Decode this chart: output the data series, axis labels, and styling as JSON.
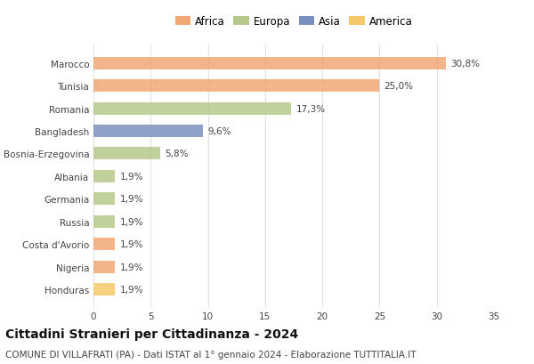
{
  "categories": [
    "Marocco",
    "Tunisia",
    "Romania",
    "Bangladesh",
    "Bosnia-Erzegovina",
    "Albania",
    "Germania",
    "Russia",
    "Costa d'Avorio",
    "Nigeria",
    "Honduras"
  ],
  "values": [
    30.8,
    25.0,
    17.3,
    9.6,
    5.8,
    1.9,
    1.9,
    1.9,
    1.9,
    1.9,
    1.9
  ],
  "labels": [
    "30,8%",
    "25,0%",
    "17,3%",
    "9,6%",
    "5,8%",
    "1,9%",
    "1,9%",
    "1,9%",
    "1,9%",
    "1,9%",
    "1,9%"
  ],
  "colors": [
    "#f0a875",
    "#f0a875",
    "#b5c98a",
    "#7b8fc0",
    "#b5c98a",
    "#b5c98a",
    "#b5c98a",
    "#b5c98a",
    "#f0a875",
    "#f0a875",
    "#f5c96a"
  ],
  "legend_labels": [
    "Africa",
    "Europa",
    "Asia",
    "America"
  ],
  "legend_colors": [
    "#f0a875",
    "#b5c98a",
    "#7b8fc0",
    "#f5c96a"
  ],
  "title": "Cittadini Stranieri per Cittadinanza - 2024",
  "subtitle": "COMUNE DI VILLAFRATI (PA) - Dati ISTAT al 1° gennaio 2024 - Elaborazione TUTTITALIA.IT",
  "xlim": [
    0,
    35
  ],
  "xticks": [
    0,
    5,
    10,
    15,
    20,
    25,
    30,
    35
  ],
  "background_color": "#ffffff",
  "grid_color": "#e0e0e0",
  "bar_height": 0.55,
  "title_fontsize": 10,
  "subtitle_fontsize": 7.5,
  "label_fontsize": 7.5,
  "tick_fontsize": 7.5,
  "legend_fontsize": 8.5
}
